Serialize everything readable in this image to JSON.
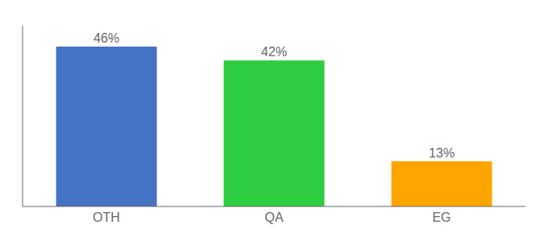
{
  "chart_data": {
    "type": "bar",
    "categories": [
      "OTH",
      "QA",
      "EG"
    ],
    "values": [
      46,
      42,
      13
    ],
    "value_labels": [
      "46%",
      "42%",
      "13%"
    ],
    "colors": [
      "#4472C4",
      "#2ECC40",
      "#FFA500"
    ],
    "ylim": [
      0,
      52
    ],
    "data_labels": true,
    "tick_labels": "x"
  }
}
